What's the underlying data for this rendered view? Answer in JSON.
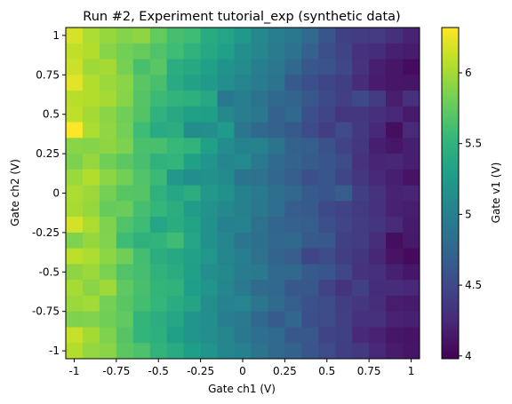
{
  "chart_data": {
    "type": "heatmap",
    "title": "Run #2, Experiment tutorial_exp (synthetic data)",
    "xlabel": "Gate ch1 (V)",
    "ylabel": "Gate ch2 (V)",
    "colorbar_label": "Gate v1 (V)",
    "colormap": "viridis",
    "x_range": [
      -1,
      1
    ],
    "y_range": [
      -1,
      1
    ],
    "color_range": [
      3.98,
      6.32
    ],
    "x_ticks": [
      {
        "value": -1,
        "label": "-1"
      },
      {
        "value": -0.75,
        "label": "-0.75"
      },
      {
        "value": -0.5,
        "label": "-0.5"
      },
      {
        "value": -0.25,
        "label": "-0.25"
      },
      {
        "value": 0,
        "label": "0"
      },
      {
        "value": 0.25,
        "label": "0.25"
      },
      {
        "value": 0.5,
        "label": "0.5"
      },
      {
        "value": 0.75,
        "label": "0.75"
      },
      {
        "value": 1,
        "label": "1"
      }
    ],
    "y_ticks": [
      {
        "value": -1,
        "label": "-1"
      },
      {
        "value": -0.75,
        "label": "-0.75"
      },
      {
        "value": -0.5,
        "label": "-0.5"
      },
      {
        "value": -0.25,
        "label": "-0.25"
      },
      {
        "value": 0,
        "label": "0"
      },
      {
        "value": 0.25,
        "label": "0.25"
      },
      {
        "value": 0.5,
        "label": "0.5"
      },
      {
        "value": 0.75,
        "label": "0.75"
      },
      {
        "value": 1,
        "label": "1"
      }
    ],
    "colorbar_ticks": [
      {
        "value": 4,
        "label": "4"
      },
      {
        "value": 4.5,
        "label": "4.5"
      },
      {
        "value": 5,
        "label": "5"
      },
      {
        "value": 5.5,
        "label": "5.5"
      },
      {
        "value": 6,
        "label": "6"
      }
    ],
    "x": [
      -1.0,
      -0.9,
      -0.8,
      -0.7,
      -0.6,
      -0.5,
      -0.4,
      -0.3,
      -0.2,
      -0.1,
      0.0,
      0.1,
      0.2,
      0.3,
      0.4,
      0.5,
      0.6,
      0.7,
      0.8,
      0.9,
      1.0
    ],
    "y": [
      1.0,
      0.9,
      0.8,
      0.7,
      0.6,
      0.5,
      0.4,
      0.3,
      0.2,
      0.1,
      0.0,
      -0.1,
      -0.2,
      -0.3,
      -0.4,
      -0.5,
      -0.6,
      -0.7,
      -0.8,
      -0.9,
      -1.0
    ],
    "z": [
      [
        6.18,
        6.02,
        5.95,
        5.88,
        5.92,
        5.75,
        5.62,
        5.58,
        5.41,
        5.35,
        5.22,
        5.08,
        4.98,
        4.92,
        4.78,
        4.61,
        4.44,
        4.4,
        4.38,
        4.3,
        4.21
      ],
      [
        6.1,
        6.05,
        5.89,
        5.81,
        5.77,
        5.66,
        5.58,
        5.49,
        5.38,
        5.3,
        5.13,
        5.07,
        4.95,
        4.86,
        4.7,
        4.55,
        4.46,
        4.31,
        4.28,
        4.19,
        4.16
      ],
      [
        6.14,
        5.98,
        6.0,
        5.83,
        5.63,
        5.71,
        5.43,
        5.38,
        5.3,
        5.18,
        5.11,
        4.99,
        4.91,
        4.76,
        4.62,
        4.59,
        4.49,
        4.33,
        4.18,
        4.12,
        4.05
      ],
      [
        6.22,
        6.05,
        5.96,
        5.9,
        5.71,
        5.63,
        5.4,
        5.31,
        5.25,
        5.13,
        5.04,
        4.96,
        4.87,
        4.64,
        4.56,
        4.48,
        4.42,
        4.27,
        4.16,
        4.12,
        4.11
      ],
      [
        6.07,
        6.05,
        6.0,
        5.89,
        5.69,
        5.57,
        5.5,
        5.46,
        5.37,
        4.92,
        4.98,
        4.88,
        4.76,
        4.73,
        4.63,
        4.5,
        4.43,
        4.5,
        4.39,
        4.17,
        4.31
      ],
      [
        6.1,
        6.0,
        5.9,
        5.8,
        5.68,
        5.48,
        5.38,
        5.3,
        5.29,
        5.08,
        4.98,
        4.92,
        4.7,
        4.76,
        4.56,
        4.48,
        4.35,
        4.35,
        4.3,
        4.24,
        4.15
      ],
      [
        6.31,
        6.03,
        5.93,
        5.82,
        5.58,
        5.4,
        5.43,
        5.12,
        5.13,
        5.24,
        4.89,
        4.77,
        4.72,
        4.64,
        4.52,
        4.41,
        4.51,
        4.37,
        4.25,
        4.07,
        4.26
      ],
      [
        5.9,
        5.88,
        5.92,
        5.85,
        5.64,
        5.63,
        5.55,
        5.5,
        5.3,
        5.11,
        5.03,
        5.02,
        4.88,
        4.72,
        4.68,
        4.57,
        4.45,
        4.36,
        4.18,
        4.13,
        4.18
      ],
      [
        5.85,
        5.95,
        5.8,
        5.72,
        5.63,
        5.48,
        5.51,
        5.3,
        5.2,
        5.07,
        5.09,
        4.94,
        4.78,
        4.73,
        4.66,
        4.6,
        4.52,
        4.33,
        4.22,
        4.23,
        4.18
      ],
      [
        5.96,
        6.05,
        5.91,
        5.81,
        5.66,
        5.57,
        5.22,
        5.13,
        5.16,
        5.1,
        4.87,
        4.85,
        4.75,
        4.67,
        4.56,
        4.61,
        4.47,
        4.35,
        4.24,
        4.18,
        4.1
      ],
      [
        6.02,
        5.97,
        5.82,
        5.7,
        5.69,
        5.47,
        5.36,
        5.43,
        5.22,
        5.16,
        5.01,
        4.94,
        4.83,
        4.75,
        4.64,
        4.61,
        4.68,
        4.41,
        4.33,
        4.21,
        4.22
      ],
      [
        6.01,
        5.95,
        5.77,
        5.78,
        5.62,
        5.53,
        5.44,
        5.26,
        5.17,
        5.08,
        5.0,
        4.91,
        4.82,
        4.67,
        4.64,
        4.5,
        4.45,
        4.39,
        4.31,
        4.2,
        4.17
      ],
      [
        6.17,
        6.03,
        5.86,
        5.66,
        5.58,
        5.35,
        5.42,
        5.33,
        5.16,
        5.0,
        5.02,
        4.85,
        4.74,
        4.7,
        4.68,
        4.56,
        4.47,
        4.4,
        4.34,
        4.26,
        4.15
      ],
      [
        5.86,
        5.95,
        5.87,
        5.58,
        5.47,
        5.5,
        5.59,
        5.35,
        5.16,
        5.06,
        4.9,
        4.83,
        4.75,
        4.76,
        4.64,
        4.62,
        4.44,
        4.4,
        4.29,
        4.07,
        4.14
      ],
      [
        6.08,
        6.03,
        5.91,
        5.8,
        5.61,
        5.44,
        5.38,
        5.31,
        5.21,
        5.05,
        4.98,
        4.85,
        4.73,
        4.67,
        4.47,
        4.52,
        4.41,
        4.34,
        4.23,
        4.1,
        4.04
      ],
      [
        5.92,
        5.97,
        5.84,
        5.67,
        5.62,
        5.49,
        5.42,
        5.3,
        5.13,
        5.08,
        4.95,
        4.93,
        4.76,
        4.75,
        4.64,
        4.61,
        4.49,
        4.33,
        4.3,
        4.19,
        4.13
      ],
      [
        6.01,
        5.9,
        5.98,
        5.73,
        5.63,
        5.52,
        5.49,
        5.28,
        5.2,
        5.06,
        4.93,
        4.79,
        4.77,
        4.63,
        4.62,
        4.46,
        4.33,
        4.44,
        4.28,
        4.27,
        4.24
      ],
      [
        5.96,
        5.99,
        5.82,
        5.71,
        5.61,
        5.53,
        5.42,
        5.34,
        5.13,
        5.02,
        5.04,
        4.89,
        4.79,
        4.68,
        4.57,
        4.52,
        4.41,
        4.35,
        4.29,
        4.17,
        4.15
      ],
      [
        5.86,
        5.87,
        5.8,
        5.74,
        5.52,
        5.44,
        5.36,
        5.2,
        5.14,
        4.98,
        4.93,
        4.77,
        4.65,
        4.74,
        4.56,
        4.52,
        4.43,
        4.31,
        4.32,
        4.21,
        4.19
      ],
      [
        6.12,
        6.0,
        5.86,
        5.69,
        5.51,
        5.46,
        5.3,
        5.19,
        5.13,
        5.06,
        4.92,
        4.82,
        4.79,
        4.63,
        4.62,
        4.46,
        4.44,
        4.25,
        4.21,
        4.12,
        4.1
      ],
      [
        6.05,
        5.94,
        5.9,
        5.72,
        5.65,
        5.5,
        5.4,
        5.28,
        5.19,
        5.07,
        5.0,
        4.87,
        4.77,
        4.71,
        4.6,
        4.52,
        4.42,
        4.37,
        4.24,
        4.16,
        4.11
      ]
    ]
  }
}
